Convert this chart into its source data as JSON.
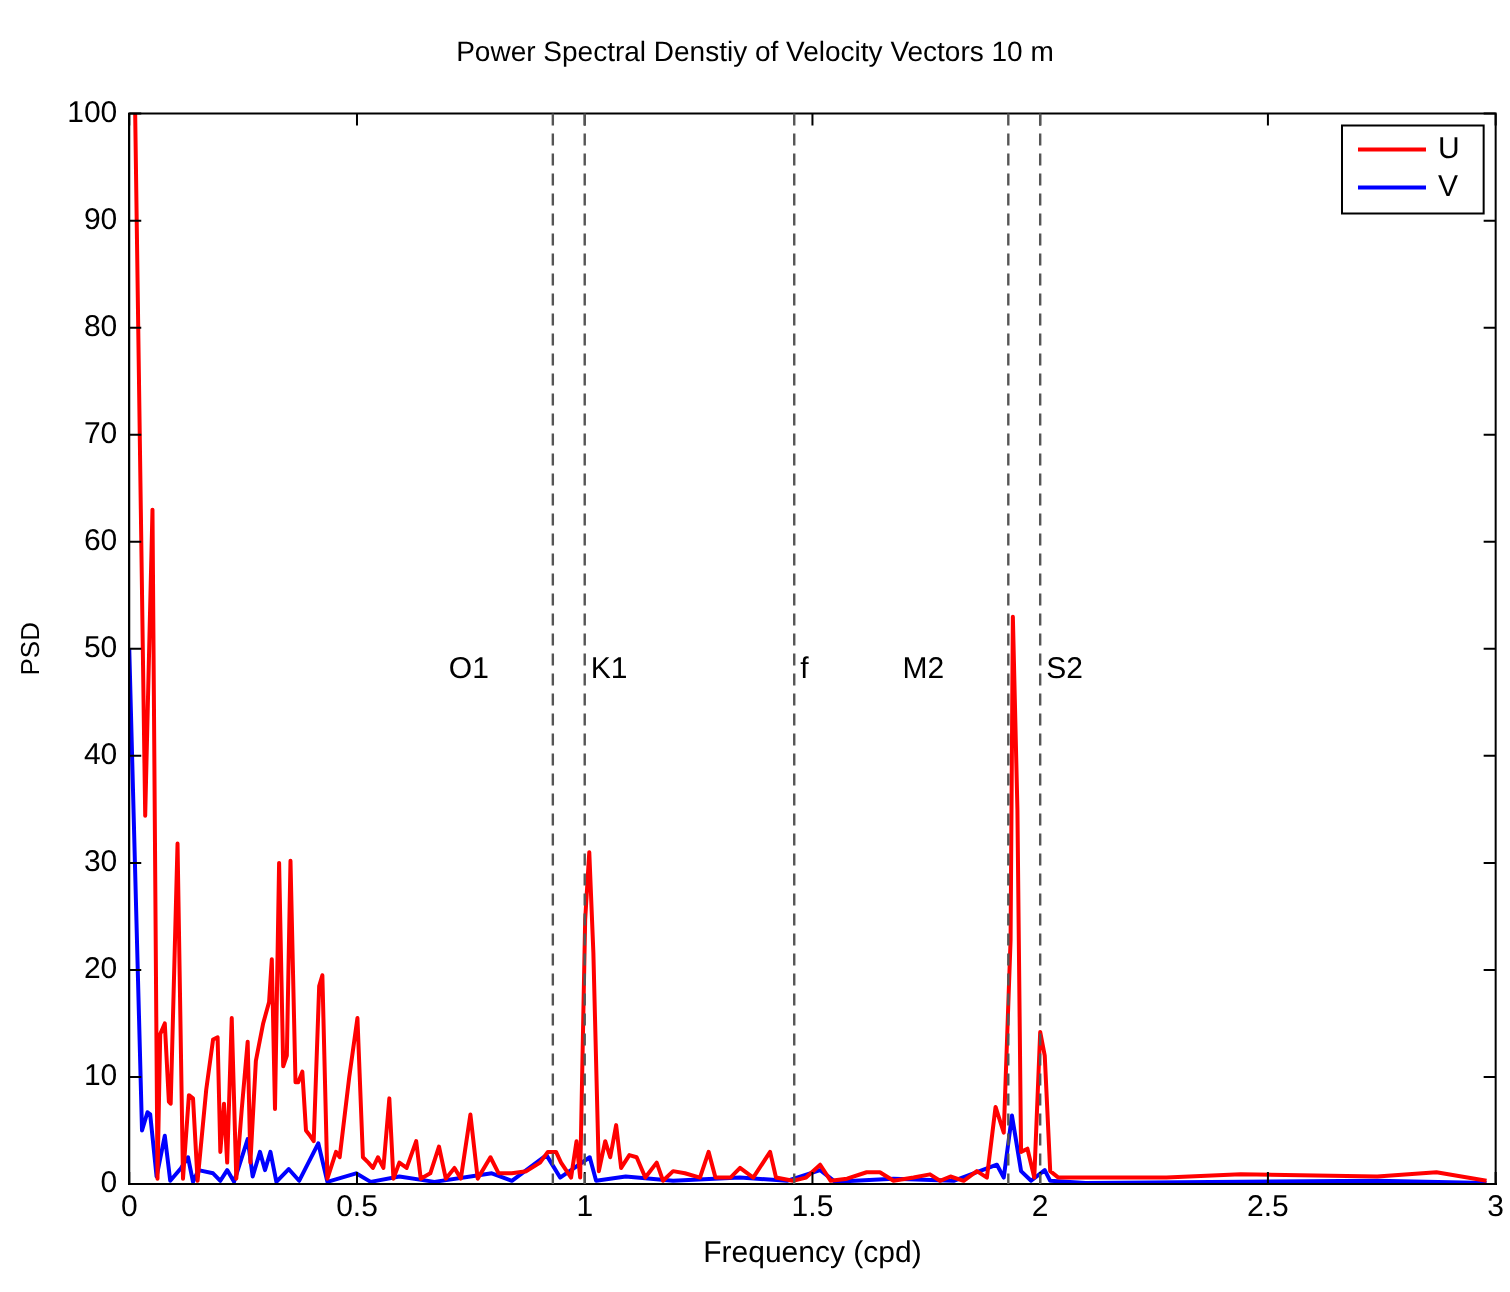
{
  "chart_data": {
    "type": "line",
    "title": "Power Spectral Denstiy of Velocity Vectors 10 m",
    "xlabel": "Frequency (cpd)",
    "ylabel": "PSD",
    "xlim": [
      0,
      3
    ],
    "xticks": [
      0,
      0.5,
      1,
      1.5,
      2,
      2.5,
      3
    ],
    "ylim": [
      0,
      100
    ],
    "yticks": [
      0,
      10,
      20,
      30,
      40,
      50,
      60,
      70,
      80,
      90,
      100
    ],
    "grid": false,
    "legend": "top right",
    "line_style": "solid",
    "marker": "none",
    "ref_lines": [
      {
        "axis": "x",
        "value": 0.93,
        "label": "O1",
        "color": "#555555",
        "line_style": "dashed"
      },
      {
        "axis": "x",
        "value": 1.0,
        "label": "K1",
        "color": "#555555",
        "line_style": "dashed"
      },
      {
        "axis": "x",
        "value": 1.46,
        "label": "f",
        "color": "#555555",
        "line_style": "dashed"
      },
      {
        "axis": "x",
        "value": 1.93,
        "label": "M2",
        "color": "#555555",
        "line_style": "dashed"
      },
      {
        "axis": "x",
        "value": 2.0,
        "label": "S2",
        "color": "#555555",
        "line_style": "dashed"
      }
    ],
    "series": [
      {
        "name": "U",
        "color": "#ff0000",
        "x": [
          0.013,
          0.035,
          0.051,
          0.062,
          0.068,
          0.078,
          0.087,
          0.091,
          0.106,
          0.118,
          0.131,
          0.14,
          0.15,
          0.169,
          0.184,
          0.194,
          0.2,
          0.208,
          0.215,
          0.225,
          0.235,
          0.247,
          0.26,
          0.266,
          0.278,
          0.294,
          0.307,
          0.313,
          0.32,
          0.329,
          0.338,
          0.346,
          0.354,
          0.365,
          0.371,
          0.38,
          0.388,
          0.397,
          0.405,
          0.417,
          0.424,
          0.435,
          0.454,
          0.462,
          0.483,
          0.501,
          0.513,
          0.525,
          0.535,
          0.546,
          0.558,
          0.571,
          0.58,
          0.593,
          0.609,
          0.63,
          0.64,
          0.661,
          0.68,
          0.695,
          0.714,
          0.728,
          0.749,
          0.765,
          0.793,
          0.811,
          0.84,
          0.872,
          0.902,
          0.919,
          0.937,
          0.948,
          0.97,
          0.982,
          0.99,
          1.001,
          1.01,
          1.019,
          1.031,
          1.045,
          1.056,
          1.069,
          1.08,
          1.098,
          1.114,
          1.133,
          1.158,
          1.172,
          1.194,
          1.22,
          1.253,
          1.272,
          1.287,
          1.32,
          1.341,
          1.37,
          1.407,
          1.42,
          1.457,
          1.486,
          1.517,
          1.54,
          1.576,
          1.619,
          1.648,
          1.678,
          1.722,
          1.758,
          1.78,
          1.803,
          1.832,
          1.861,
          1.883,
          1.902,
          1.92,
          1.935,
          1.94,
          1.95,
          1.958,
          1.972,
          1.987,
          2.0,
          2.01,
          2.022,
          2.04,
          2.175,
          2.277,
          2.44,
          2.74,
          2.87,
          2.98
        ],
        "values": [
          100,
          34.4,
          63,
          0.5,
          14,
          15,
          7.7,
          7.5,
          31.8,
          0.5,
          8.3,
          8,
          0.3,
          8.8,
          13.5,
          13.7,
          3,
          7.5,
          2,
          15.5,
          0.5,
          7,
          13.3,
          2,
          11.5,
          15,
          17,
          21,
          7,
          30,
          11,
          12,
          30.2,
          9.5,
          9.5,
          10.5,
          5,
          4.5,
          4,
          18.5,
          19.5,
          0.5,
          3,
          2.5,
          10,
          15.5,
          2.5,
          2,
          1.5,
          2.5,
          1.5,
          8,
          0.5,
          2,
          1.5,
          4,
          0.5,
          1,
          3.5,
          0.5,
          1.5,
          0.5,
          6.5,
          0.5,
          2.5,
          1,
          1,
          1.2,
          2,
          3,
          3,
          2,
          0.6,
          4,
          0.6,
          24.7,
          31,
          21.6,
          1.2,
          4,
          2.5,
          5.5,
          1.5,
          2.7,
          2.5,
          0.6,
          2,
          0.3,
          1.2,
          1,
          0.6,
          3,
          0.6,
          0.6,
          1.5,
          0.6,
          3,
          0.6,
          0.3,
          0.6,
          1.8,
          0.3,
          0.5,
          1.1,
          1.1,
          0.3,
          0.6,
          0.9,
          0.3,
          0.7,
          0.3,
          1.2,
          0.6,
          7.2,
          4.8,
          22.8,
          53,
          35,
          3,
          3.3,
          0.6,
          14.2,
          12,
          1.2,
          0.6,
          0.6,
          0.6,
          0.9,
          0.7,
          1.1,
          0.3
        ]
      },
      {
        "name": "V",
        "color": "#0000ff",
        "x": [
          0,
          0.028,
          0.04,
          0.046,
          0.06,
          0.078,
          0.09,
          0.114,
          0.129,
          0.14,
          0.152,
          0.184,
          0.2,
          0.215,
          0.23,
          0.26,
          0.271,
          0.287,
          0.298,
          0.31,
          0.323,
          0.35,
          0.373,
          0.415,
          0.435,
          0.498,
          0.53,
          0.593,
          0.67,
          0.749,
          0.796,
          0.84,
          0.916,
          0.946,
          1.011,
          1.025,
          1.09,
          1.194,
          1.341,
          1.444,
          1.517,
          1.55,
          1.678,
          1.81,
          1.905,
          1.92,
          1.938,
          1.958,
          1.98,
          2.01,
          2.022,
          2.1,
          2.74,
          2.98
        ],
        "values": [
          50,
          5,
          6.7,
          6.5,
          0.7,
          4.5,
          0.3,
          1.5,
          2.5,
          0.2,
          1.3,
          1,
          0.3,
          1.3,
          0.2,
          4.2,
          0.7,
          3,
          1.3,
          3,
          0.2,
          1.4,
          0.3,
          3.8,
          0.2,
          1,
          0.2,
          0.7,
          0.2,
          0.7,
          1,
          0.3,
          2.7,
          0.6,
          2.5,
          0.3,
          0.7,
          0.3,
          0.6,
          0.3,
          1.3,
          0.2,
          0.5,
          0.3,
          1.8,
          0.6,
          6.4,
          1.2,
          0.3,
          1.3,
          0.3,
          0.1,
          0.3,
          0.1
        ]
      }
    ]
  }
}
